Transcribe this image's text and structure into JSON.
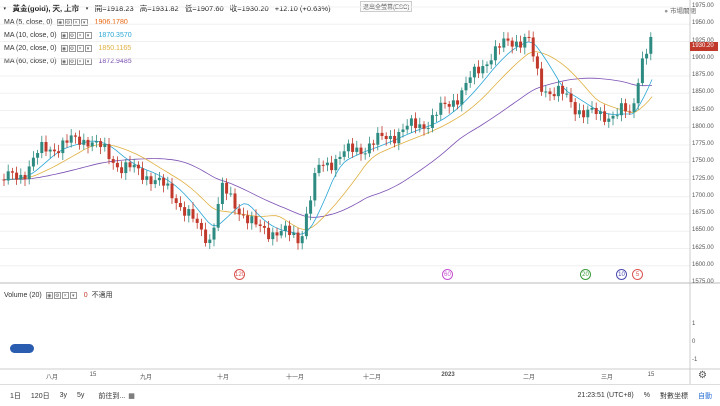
{
  "header": {
    "symbol_title": "黃金(gold), 天, 上市",
    "open_label": "開=1918.23",
    "high_label": "高=1931.82",
    "low_label": "低=1907.60",
    "close_label": "收=1930.20",
    "change_label": "+12.10 (+0.63%)",
    "fullscreen_tooltip": "退出全螢幕(ESC)",
    "market_status": "市場關閉"
  },
  "indicators": [
    {
      "label": "MA (5, close, 0)",
      "value": "1906.1780",
      "color": "#e8620a"
    },
    {
      "label": "MA (10, close, 0)",
      "value": "1870.3570",
      "color": "#2aa6d6"
    },
    {
      "label": "MA (20, close, 0)",
      "value": "1850.1165",
      "color": "#e0b040"
    },
    {
      "label": "MA (60, close, 0)",
      "value": "1872.9485",
      "color": "#7b4fb3"
    }
  ],
  "volume_panel": {
    "label": "Volume (20)",
    "value": "0",
    "status": "不適用",
    "axis_labels": [
      "1",
      "0",
      "-1"
    ]
  },
  "price_axis": {
    "ticks": [
      "1975.00",
      "1950.00",
      "1925.00",
      "1900.00",
      "1875.00",
      "1850.00",
      "1825.00",
      "1800.00",
      "1775.00",
      "1750.00",
      "1725.00",
      "1700.00",
      "1675.00",
      "1650.00",
      "1625.00",
      "1600.00",
      "1575.00"
    ],
    "current_price": "1930.20"
  },
  "time_axis": {
    "ticks": [
      "八月",
      "15",
      "九月",
      "十月",
      "十一月",
      "十二月",
      "2023",
      "二月",
      "三月",
      "15"
    ]
  },
  "event_markers": [
    {
      "label": "120",
      "color": "#d9534f"
    },
    {
      "label": "60",
      "color": "#c44fd0"
    },
    {
      "label": "20",
      "color": "#3a9a3a"
    },
    {
      "label": "10",
      "color": "#4a4ab0"
    },
    {
      "label": "5",
      "color": "#d9534f"
    }
  ],
  "bottom_bar": {
    "ranges": [
      "1日",
      "120日",
      "3y",
      "5y"
    ],
    "goto_label": "前往到...",
    "clock": "21:23:51 (UTC+8)",
    "percent_label": "%",
    "log_label": "對數坐標",
    "auto_label": "自動"
  },
  "colors": {
    "up": "#2e8b82",
    "down": "#c0392b",
    "background": "#ffffff"
  }
}
